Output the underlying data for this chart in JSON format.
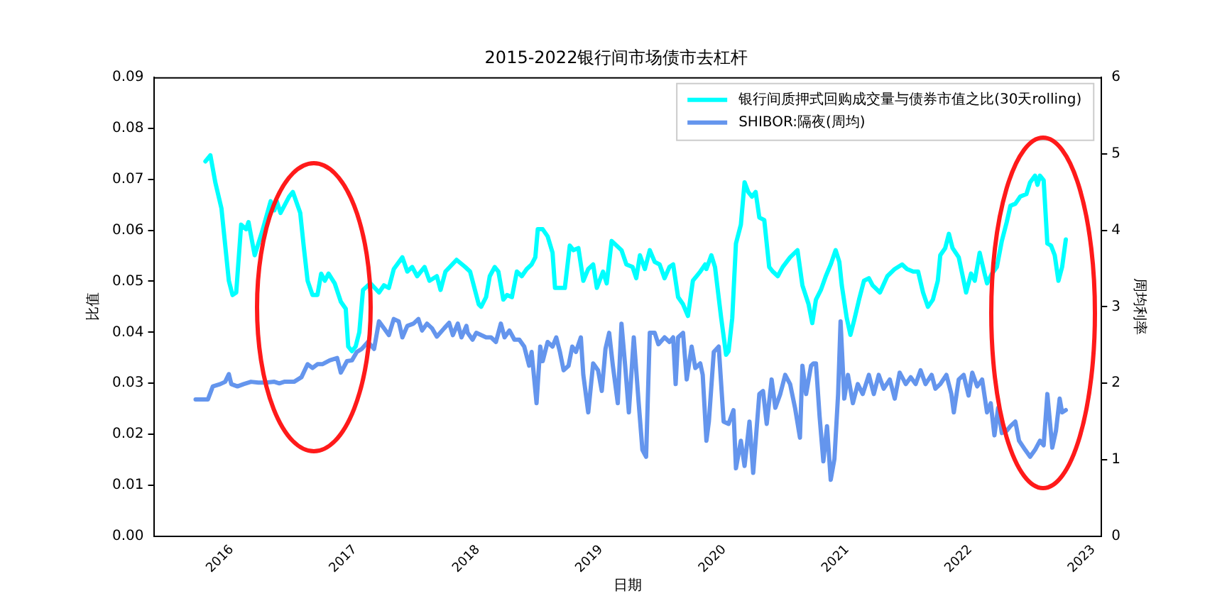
{
  "chart_data": {
    "type": "line",
    "title": "2015-2022银行间市场债市去杠杆",
    "xlabel": "日期",
    "ylabel": "比值",
    "y2label": "周均利率",
    "xlim": [
      2015.46,
      2023.16
    ],
    "xticks": [
      2016,
      2017,
      2018,
      2019,
      2020,
      2021,
      2022,
      2023
    ],
    "ylim": [
      0,
      0.09
    ],
    "yticks": [
      {
        "value": 0,
        "label": "0.00"
      },
      {
        "value": 0.01,
        "label": "0.01"
      },
      {
        "value": 0.02,
        "label": "0.02"
      },
      {
        "value": 0.03,
        "label": "0.03"
      },
      {
        "value": 0.04,
        "label": "0.04"
      },
      {
        "value": 0.05,
        "label": "0.05"
      },
      {
        "value": 0.06,
        "label": "0.06"
      },
      {
        "value": 0.07,
        "label": "0.07"
      },
      {
        "value": 0.08,
        "label": "0.08"
      },
      {
        "value": 0.09,
        "label": "0.09"
      }
    ],
    "y2lim": [
      0,
      6
    ],
    "y2ticks": [
      0,
      1,
      2,
      3,
      4,
      5,
      6
    ],
    "legend": "top right",
    "marker": "none",
    "line_style": "solid",
    "grid": false,
    "series": [
      {
        "name": "银行间质押式回购成交量与债券市值之比(30天rolling)",
        "color": "#00ffff",
        "axis": "y",
        "x": [
          2015.88,
          2015.92,
          2015.96,
          2016.01,
          2016.07,
          2016.1,
          2016.13,
          2016.17,
          2016.21,
          2016.23,
          2016.28,
          2016.34,
          2016.41,
          2016.44,
          2016.46,
          2016.49,
          2016.56,
          2016.59,
          2016.65,
          2016.68,
          2016.71,
          2016.75,
          2016.79,
          2016.82,
          2016.85,
          2016.88,
          2016.93,
          2016.98,
          2017.02,
          2017.04,
          2017.07,
          2017.1,
          2017.13,
          2017.16,
          2017.22,
          2017.29,
          2017.33,
          2017.37,
          2017.41,
          2017.48,
          2017.52,
          2017.56,
          2017.6,
          2017.66,
          2017.7,
          2017.76,
          2017.79,
          2017.83,
          2017.92,
          2017.99,
          2018.03,
          2018.1,
          2018.12,
          2018.16,
          2018.19,
          2018.23,
          2018.26,
          2018.3,
          2018.33,
          2018.37,
          2018.41,
          2018.45,
          2018.49,
          2018.53,
          2018.56,
          2018.58,
          2018.62,
          2018.66,
          2018.7,
          2018.72,
          2018.76,
          2018.8,
          2018.84,
          2018.87,
          2018.91,
          2018.95,
          2018.99,
          2019.03,
          2019.06,
          2019.11,
          2019.14,
          2019.18,
          2019.22,
          2019.26,
          2019.3,
          2019.35,
          2019.38,
          2019.41,
          2019.45,
          2019.49,
          2019.53,
          2019.57,
          2019.61,
          2019.65,
          2019.68,
          2019.72,
          2019.76,
          2019.8,
          2019.84,
          2019.9,
          2019.94,
          2019.95,
          2019.99,
          2020.02,
          2020.07,
          2020.11,
          2020.13,
          2020.16,
          2020.19,
          2020.23,
          2020.26,
          2020.29,
          2020.32,
          2020.35,
          2020.38,
          2020.42,
          2020.46,
          2020.49,
          2020.53,
          2020.57,
          2020.63,
          2020.69,
          2020.73,
          2020.78,
          2020.81,
          2020.84,
          2020.88,
          2020.92,
          2020.96,
          2021.0,
          2021.03,
          2021.05,
          2021.09,
          2021.12,
          2021.15,
          2021.19,
          2021.23,
          2021.27,
          2021.3,
          2021.36,
          2021.42,
          2021.48,
          2021.54,
          2021.58,
          2021.63,
          2021.67,
          2021.71,
          2021.75,
          2021.79,
          2021.83,
          2021.85,
          2021.89,
          2021.92,
          2021.95,
          2022.0,
          2022.04,
          2022.06,
          2022.1,
          2022.13,
          2022.17,
          2022.21,
          2022.23,
          2022.27,
          2022.31,
          2022.35,
          2022.39,
          2022.42,
          2022.46,
          2022.5,
          2022.55,
          2022.58,
          2022.62,
          2022.64,
          2022.66,
          2022.69,
          2022.72,
          2022.75,
          2022.78,
          2022.81,
          2022.84,
          2022.87
        ],
        "values": [
          0.0735,
          0.0747,
          0.0694,
          0.0643,
          0.0501,
          0.0473,
          0.0478,
          0.0611,
          0.0602,
          0.0616,
          0.0551,
          0.0597,
          0.0657,
          0.0639,
          0.0657,
          0.0634,
          0.0666,
          0.0675,
          0.0634,
          0.0565,
          0.0501,
          0.0473,
          0.0473,
          0.0515,
          0.0501,
          0.0515,
          0.0496,
          0.046,
          0.0446,
          0.0372,
          0.0363,
          0.0372,
          0.04,
          0.0483,
          0.0496,
          0.0478,
          0.0492,
          0.0487,
          0.0524,
          0.0547,
          0.0519,
          0.0528,
          0.051,
          0.0528,
          0.0501,
          0.051,
          0.0483,
          0.0519,
          0.0542,
          0.0528,
          0.0519,
          0.0455,
          0.045,
          0.0469,
          0.051,
          0.0528,
          0.0519,
          0.0464,
          0.0473,
          0.0469,
          0.0519,
          0.051,
          0.0524,
          0.0533,
          0.0547,
          0.0602,
          0.0602,
          0.0588,
          0.0556,
          0.0487,
          0.0487,
          0.0487,
          0.057,
          0.0561,
          0.0565,
          0.0501,
          0.0524,
          0.0533,
          0.0487,
          0.0519,
          0.0496,
          0.0579,
          0.057,
          0.0561,
          0.0533,
          0.0528,
          0.0506,
          0.0551,
          0.0524,
          0.0561,
          0.0538,
          0.0533,
          0.0506,
          0.0528,
          0.0533,
          0.0469,
          0.0455,
          0.0432,
          0.0501,
          0.0519,
          0.0533,
          0.0524,
          0.0551,
          0.0528,
          0.0428,
          0.0356,
          0.0363,
          0.0428,
          0.0574,
          0.0611,
          0.0694,
          0.0675,
          0.0666,
          0.0675,
          0.0625,
          0.062,
          0.0528,
          0.0519,
          0.051,
          0.0528,
          0.0547,
          0.0561,
          0.0492,
          0.0455,
          0.0418,
          0.0464,
          0.0483,
          0.051,
          0.0533,
          0.0561,
          0.0538,
          0.0492,
          0.0428,
          0.0395,
          0.0423,
          0.0464,
          0.0501,
          0.0506,
          0.0492,
          0.0478,
          0.051,
          0.0524,
          0.0533,
          0.0524,
          0.0519,
          0.0519,
          0.0478,
          0.045,
          0.0464,
          0.0501,
          0.0551,
          0.0565,
          0.0593,
          0.0565,
          0.0547,
          0.0501,
          0.0478,
          0.0515,
          0.0501,
          0.0556,
          0.0515,
          0.0496,
          0.0515,
          0.0528,
          0.0579,
          0.0616,
          0.0648,
          0.0652,
          0.0666,
          0.0671,
          0.0694,
          0.0707,
          0.0689,
          0.0707,
          0.0698,
          0.0574,
          0.057,
          0.0551,
          0.0501,
          0.0528,
          0.0582
        ]
      },
      {
        "name": "SHIBOR:隔夜(周均)",
        "color": "#6495ed",
        "axis": "y2",
        "x": [
          2015.8,
          2015.9,
          2015.94,
          2016.0,
          2016.04,
          2016.07,
          2016.09,
          2016.14,
          2016.19,
          2016.25,
          2016.31,
          2016.37,
          2016.44,
          2016.48,
          2016.52,
          2016.6,
          2016.66,
          2016.71,
          2016.75,
          2016.79,
          2016.83,
          2016.89,
          2016.95,
          2016.98,
          2017.03,
          2017.07,
          2017.11,
          2017.15,
          2017.2,
          2017.25,
          2017.29,
          2017.33,
          2017.37,
          2017.41,
          2017.45,
          2017.48,
          2017.52,
          2017.57,
          2017.61,
          2017.64,
          2017.68,
          2017.72,
          2017.76,
          2017.82,
          2017.86,
          2017.89,
          2017.93,
          2017.96,
          2018.0,
          2018.01,
          2018.05,
          2018.08,
          2018.12,
          2018.16,
          2018.2,
          2018.24,
          2018.28,
          2018.31,
          2018.35,
          2018.39,
          2018.43,
          2018.47,
          2018.51,
          2018.53,
          2018.57,
          2018.6,
          2018.62,
          2018.66,
          2018.7,
          2018.73,
          2018.76,
          2018.79,
          2018.83,
          2018.86,
          2018.89,
          2018.93,
          2018.95,
          2018.99,
          2019.03,
          2019.07,
          2019.1,
          2019.13,
          2019.16,
          2019.19,
          2019.23,
          2019.26,
          2019.29,
          2019.32,
          2019.36,
          2019.4,
          2019.43,
          2019.46,
          2019.49,
          2019.53,
          2019.56,
          2019.61,
          2019.65,
          2019.68,
          2019.7,
          2019.72,
          2019.76,
          2019.79,
          2019.83,
          2019.86,
          2019.9,
          2019.92,
          2019.95,
          2019.97,
          2020.01,
          2020.05,
          2020.09,
          2020.13,
          2020.17,
          2020.19,
          2020.23,
          2020.26,
          2020.3,
          2020.33,
          2020.38,
          2020.41,
          2020.44,
          2020.48,
          2020.51,
          2020.55,
          2020.59,
          2020.63,
          2020.67,
          2020.71,
          2020.73,
          2020.76,
          2020.8,
          2020.82,
          2020.84,
          2020.87,
          2020.9,
          2020.93,
          2020.96,
          2020.99,
          2021.02,
          2021.04,
          2021.07,
          2021.1,
          2021.14,
          2021.18,
          2021.22,
          2021.27,
          2021.31,
          2021.35,
          2021.39,
          2021.44,
          2021.48,
          2021.52,
          2021.57,
          2021.61,
          2021.65,
          2021.69,
          2021.73,
          2021.78,
          2021.81,
          2021.85,
          2021.9,
          2021.94,
          2021.96,
          2022.0,
          2022.04,
          2022.08,
          2022.11,
          2022.15,
          2022.19,
          2022.23,
          2022.26,
          2022.29,
          2022.32,
          2022.35,
          2022.39,
          2022.42,
          2022.46,
          2022.49,
          2022.54,
          2022.58,
          2022.62,
          2022.66,
          2022.69,
          2022.72,
          2022.76,
          2022.79,
          2022.82,
          2022.84,
          2022.87
        ],
        "values": [
          1.79,
          1.79,
          1.96,
          1.99,
          2.02,
          2.12,
          1.99,
          1.96,
          1.99,
          2.02,
          2.01,
          2.01,
          2.02,
          2.0,
          2.02,
          2.02,
          2.08,
          2.25,
          2.2,
          2.25,
          2.25,
          2.3,
          2.33,
          2.14,
          2.29,
          2.3,
          2.41,
          2.45,
          2.54,
          2.45,
          2.81,
          2.72,
          2.63,
          2.84,
          2.81,
          2.6,
          2.75,
          2.78,
          2.84,
          2.69,
          2.78,
          2.72,
          2.61,
          2.72,
          2.79,
          2.63,
          2.78,
          2.6,
          2.75,
          2.66,
          2.57,
          2.66,
          2.63,
          2.6,
          2.6,
          2.54,
          2.78,
          2.6,
          2.69,
          2.57,
          2.57,
          2.48,
          2.23,
          2.41,
          1.74,
          2.48,
          2.29,
          2.54,
          2.48,
          2.6,
          2.41,
          2.17,
          2.23,
          2.48,
          2.41,
          2.6,
          2.11,
          1.62,
          2.26,
          2.17,
          1.9,
          2.45,
          2.66,
          2.23,
          1.74,
          2.78,
          2.23,
          1.62,
          2.6,
          1.74,
          1.13,
          1.04,
          2.66,
          2.66,
          2.51,
          2.6,
          2.54,
          2.6,
          1.99,
          2.6,
          2.66,
          2.05,
          2.48,
          2.2,
          2.26,
          2.11,
          1.25,
          1.5,
          2.41,
          2.48,
          1.5,
          1.47,
          1.65,
          0.89,
          1.25,
          0.92,
          1.5,
          0.83,
          1.86,
          1.9,
          1.47,
          2.05,
          1.68,
          1.86,
          2.11,
          1.99,
          1.68,
          1.29,
          2.23,
          1.86,
          2.23,
          2.26,
          2.26,
          1.56,
          0.98,
          1.44,
          0.74,
          1.01,
          1.86,
          2.81,
          1.8,
          2.11,
          1.74,
          1.99,
          1.86,
          2.11,
          1.86,
          2.11,
          1.93,
          2.05,
          1.8,
          2.14,
          1.99,
          2.08,
          1.99,
          2.17,
          1.99,
          2.11,
          1.93,
          1.99,
          2.11,
          1.86,
          1.62,
          2.05,
          2.11,
          1.84,
          2.14,
          1.96,
          2.05,
          1.62,
          1.74,
          1.32,
          1.68,
          1.35,
          1.38,
          1.44,
          1.5,
          1.25,
          1.13,
          1.04,
          1.13,
          1.25,
          1.19,
          1.86,
          1.16,
          1.38,
          1.8,
          1.62,
          1.65
        ]
      }
    ]
  }
}
